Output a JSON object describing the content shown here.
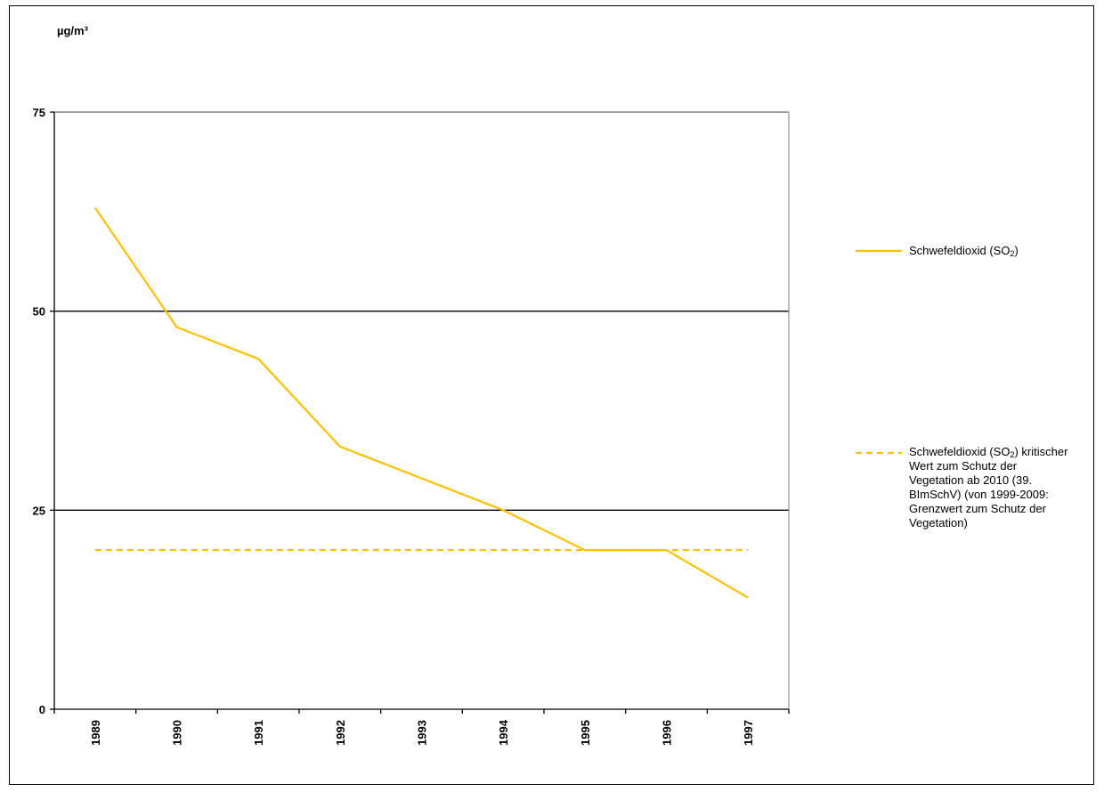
{
  "chart_data": {
    "type": "line",
    "ylabel": "µg/m³",
    "ylim": [
      0,
      75
    ],
    "yticks": [
      0,
      25,
      50,
      75
    ],
    "categories": [
      "1989",
      "1990",
      "1991",
      "1992",
      "1993",
      "1994",
      "1995",
      "1996",
      "1997"
    ],
    "grid": "horizontal",
    "legend_position": "right",
    "series": [
      {
        "name_main": "Schwefeldioxid (SO",
        "name_sub": "2",
        "name_tail": ")",
        "style": "solid",
        "color": "#ffc000",
        "values": [
          63,
          48,
          44,
          33,
          29,
          25,
          20,
          20,
          14
        ]
      },
      {
        "name_main": "Schwefeldioxid (SO",
        "name_sub": "2",
        "name_tail": ") kritischer Wert zum Schutz der Vegetation ab 2010 (39. BImSchV) (von 1999-2009: Grenzwert zum Schutz der Vegetation)",
        "style": "dashed",
        "color": "#ffc000",
        "values": [
          20,
          20,
          20,
          20,
          20,
          20,
          20,
          20,
          20
        ]
      }
    ]
  }
}
